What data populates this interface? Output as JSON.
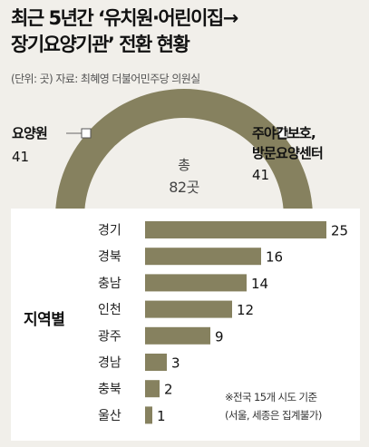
{
  "title_line1": "최근 5년간 ‘유치원·어린이집→",
  "title_line2": "장기요양기관’ 전환 현황",
  "source": "(단위: 곳) 자료: 최혜영 더불어민주당 의원실",
  "donut": {
    "left_label": "요양원",
    "left_value": "41",
    "right_label_line1": "주야간보호,",
    "right_label_line2": "방문요양센터",
    "right_value": "41",
    "total_label": "총",
    "total_value": "82곳",
    "color": "#86815f"
  },
  "axis_title": "지역별",
  "note_line1": "※전국 15개 시도 기준",
  "note_line2": "(서울, 세종은 집계불가)",
  "chart_data": [
    {
      "type": "pie",
      "labels": [
        "요양원",
        "주야간보호, 방문요양센터"
      ],
      "values": [
        41,
        41
      ],
      "total": 82
    },
    {
      "type": "bar",
      "orientation": "horizontal",
      "title": "지역별",
      "categories": [
        "경기",
        "경북",
        "충남",
        "인천",
        "광주",
        "경남",
        "충북",
        "울산"
      ],
      "values": [
        25,
        16,
        14,
        12,
        9,
        3,
        2,
        1
      ],
      "xlim": [
        0,
        25
      ],
      "color": "#86815f"
    }
  ]
}
